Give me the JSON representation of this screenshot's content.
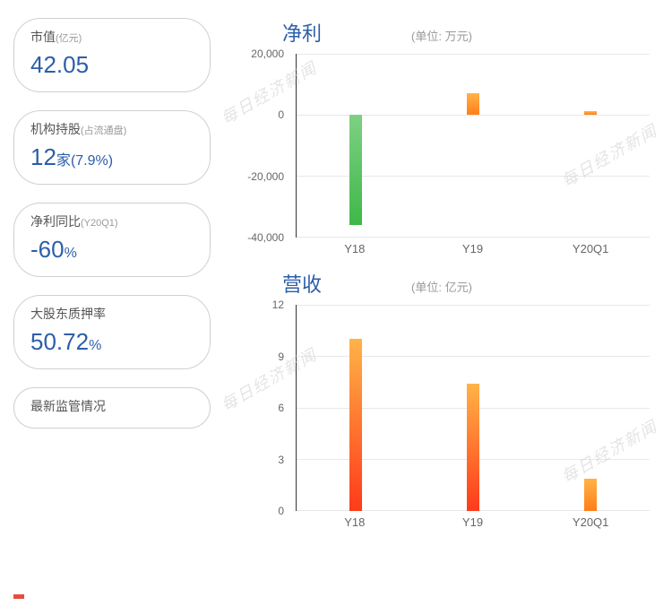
{
  "stats": [
    {
      "label": "市值",
      "sub": "(亿元)",
      "value": "42.05",
      "unit": ""
    },
    {
      "label": "机构持股",
      "sub": "(占流通盘)",
      "value": "12",
      "unit": "家",
      "extra": "(7.9%)"
    },
    {
      "label": "净利同比",
      "sub": "(Y20Q1)",
      "value": "-60",
      "unit": "%"
    },
    {
      "label": "大股东质押率",
      "sub": "",
      "value": "50.72",
      "unit": "%"
    },
    {
      "label": "最新监管情况",
      "sub": "",
      "value": "",
      "unit": ""
    }
  ],
  "chart1": {
    "title": "净利",
    "unit": "(单位: 万元)",
    "ylim": [
      -40000,
      20000
    ],
    "yticks": [
      -40000,
      -20000,
      0,
      20000
    ],
    "ytick_labels": [
      "-40,000",
      "-20,000",
      "0",
      "20,000"
    ],
    "categories": [
      "Y18",
      "Y19",
      "Y20Q1"
    ],
    "values": [
      -36000,
      7000,
      1200
    ],
    "colors": [
      "green",
      "orange",
      "orange"
    ]
  },
  "chart2": {
    "title": "营收",
    "unit": "(单位: 亿元)",
    "ylim": [
      0,
      12
    ],
    "yticks": [
      0,
      3,
      6,
      9,
      12
    ],
    "ytick_labels": [
      "0",
      "3",
      "6",
      "9",
      "12"
    ],
    "categories": [
      "Y18",
      "Y19",
      "Y20Q1"
    ],
    "values": [
      10,
      7.4,
      1.9
    ],
    "colors": [
      "red",
      "red",
      "orange"
    ]
  },
  "watermark": "每日经济新闻"
}
